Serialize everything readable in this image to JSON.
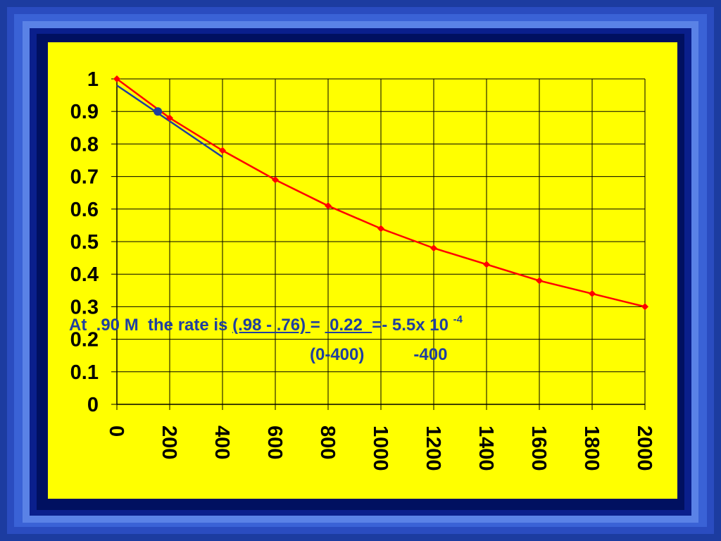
{
  "chart_data": {
    "type": "line",
    "x": [
      0,
      200,
      400,
      600,
      800,
      1000,
      1200,
      1400,
      1600,
      1800,
      2000
    ],
    "x_ticks": [
      "0",
      "200",
      "400",
      "600",
      "800",
      "1000",
      "1200",
      "1400",
      "1600",
      "1800",
      "2000"
    ],
    "y_ticks": [
      "0",
      "0.1",
      "0.2",
      "0.3",
      "0.4",
      "0.5",
      "0.6",
      "0.7",
      "0.8",
      "0.9",
      "1"
    ],
    "xlim": [
      0,
      2000
    ],
    "ylim": [
      0,
      1
    ],
    "grid": true,
    "series": [
      {
        "values": [
          1.0,
          0.88,
          0.78,
          0.69,
          0.61,
          0.54,
          0.48,
          0.43,
          0.38,
          0.34,
          0.3
        ],
        "color": "#ff0000"
      }
    ],
    "tangent_line": {
      "x": [
        0,
        400
      ],
      "y": [
        0.98,
        0.76
      ],
      "color": "#1f3f9f"
    },
    "tangent_point": {
      "x": 155,
      "y": 0.9,
      "color": "#1f3f9f"
    }
  },
  "annotation": {
    "line1_prefix": "At  .90 M  the rate is ",
    "line1_numerator": "(.98 - .76) ",
    "line1_equals": "= ",
    "line1_result": " 0.22  ",
    "line1_suffix": "=- 5.5x 10 ",
    "line1_exponent": "-4",
    "line2_denominator": "(0-400)",
    "line2_result": "-400"
  },
  "colors": {
    "background_frame": "#1a3aa8",
    "plot_background": "#ffff00",
    "grid": "#000000",
    "annotation_text": "#1f3f9f"
  }
}
